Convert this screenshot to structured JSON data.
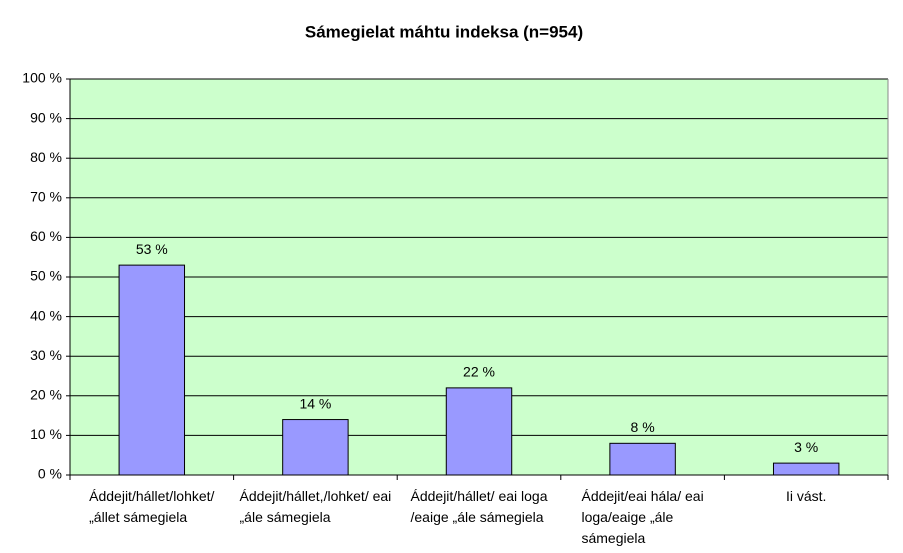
{
  "chart_data": {
    "type": "bar",
    "title": "Sámegielat máhtu indeksa (n=954)",
    "categories": [
      "Áddejit/hállet/lohket/ „állet sámegiela",
      "Áddejit/hállet,/lohket/ eai „ále sámegiela",
      "Áddejit/hállet/ eai loga /eaige „ále sámegiela",
      "Áddejit/eai hála/ eai loga/eaige „ále sámegiela",
      "Ii vást."
    ],
    "values": [
      53,
      14,
      22,
      8,
      3
    ],
    "value_labels": [
      "53 %",
      "14 %",
      "22 %",
      "8 %",
      "3 %"
    ],
    "color": "#9999ff",
    "ylim": [
      0,
      100
    ],
    "yticks": [
      {
        "value": 0,
        "label": "0 %"
      },
      {
        "value": 10,
        "label": "10 %"
      },
      {
        "value": 20,
        "label": "20 %"
      },
      {
        "value": 30,
        "label": "30 %"
      },
      {
        "value": 40,
        "label": "40 %"
      },
      {
        "value": 50,
        "label": "50 %"
      },
      {
        "value": 60,
        "label": "60 %"
      },
      {
        "value": 70,
        "label": "70 %"
      },
      {
        "value": 80,
        "label": "80 %"
      },
      {
        "value": 90,
        "label": "90 %"
      },
      {
        "value": 100,
        "label": "100 %"
      }
    ],
    "grid": true
  }
}
